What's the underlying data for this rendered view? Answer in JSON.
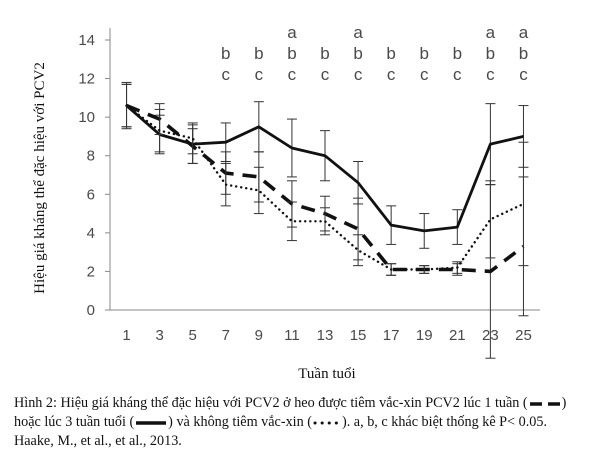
{
  "chart_data": {
    "type": "line",
    "ylabel": "Hiệu giá kháng thể đặc hiệu với PCV2",
    "xlabel": "Tuần tuổi",
    "ylim": [
      0,
      14
    ],
    "yticks": [
      0,
      2,
      4,
      6,
      8,
      10,
      12,
      14
    ],
    "x": [
      1,
      3,
      5,
      7,
      9,
      11,
      13,
      15,
      17,
      19,
      21,
      23,
      25
    ],
    "series": [
      {
        "style": "solid",
        "values": [
          10.6,
          9.1,
          8.6,
          8.7,
          9.5,
          8.4,
          8.0,
          6.6,
          4.4,
          4.1,
          4.3,
          8.6,
          9.0
        ],
        "errors": [
          1.2,
          1.0,
          1.0,
          1.0,
          1.3,
          1.5,
          1.3,
          1.1,
          1.0,
          0.9,
          0.9,
          2.1,
          1.6
        ]
      },
      {
        "style": "dashed",
        "values": [
          10.6,
          9.9,
          8.5,
          7.1,
          6.9,
          5.5,
          5.0,
          4.2,
          2.1,
          2.1,
          2.1,
          2.0,
          3.3
        ],
        "errors": [
          1.1,
          0.8,
          0.9,
          1.1,
          1.3,
          1.2,
          0.9,
          1.6,
          0.3,
          0.2,
          0.3,
          4.5,
          3.6
        ]
      },
      {
        "style": "dotted",
        "values": [
          10.6,
          9.3,
          8.9,
          6.5,
          6.2,
          4.6,
          4.6,
          3.1,
          2.1,
          2.1,
          2.2,
          4.7,
          5.5
        ],
        "errors": [
          1.1,
          1.1,
          0.8,
          1.1,
          1.2,
          1.0,
          0.7,
          0.8,
          0.3,
          0.2,
          0.3,
          2.0,
          3.2
        ]
      }
    ],
    "significance": [
      {
        "x": 7,
        "letters": [
          "b",
          "c"
        ]
      },
      {
        "x": 9,
        "letters": [
          "b",
          "c"
        ]
      },
      {
        "x": 11,
        "letters": [
          "a",
          "b",
          "c"
        ]
      },
      {
        "x": 13,
        "letters": [
          "b",
          "c"
        ]
      },
      {
        "x": 15,
        "letters": [
          "a",
          "b",
          "c"
        ]
      },
      {
        "x": 17,
        "letters": [
          "b",
          "c"
        ]
      },
      {
        "x": 19,
        "letters": [
          "b",
          "c"
        ]
      },
      {
        "x": 21,
        "letters": [
          "b",
          "c"
        ]
      },
      {
        "x": 23,
        "letters": [
          "a",
          "b",
          "c"
        ]
      },
      {
        "x": 25,
        "letters": [
          "a",
          "b",
          "c"
        ]
      }
    ],
    "grid": false,
    "legend": "none"
  },
  "caption": {
    "part1": "Hình 2: Hiệu giá kháng thể đặc hiệu với PCV2 ở heo được tiêm vắc-xin PCV2 lúc 1 tuần (",
    "part2": ") hoặc lúc 3 tuần tuổi (",
    "part3": ") và không tiêm vắc-xin (",
    "part4": "). a, b, c khác biệt thống kê P< 0.05. Haake, M., et al., et al., 2013."
  }
}
